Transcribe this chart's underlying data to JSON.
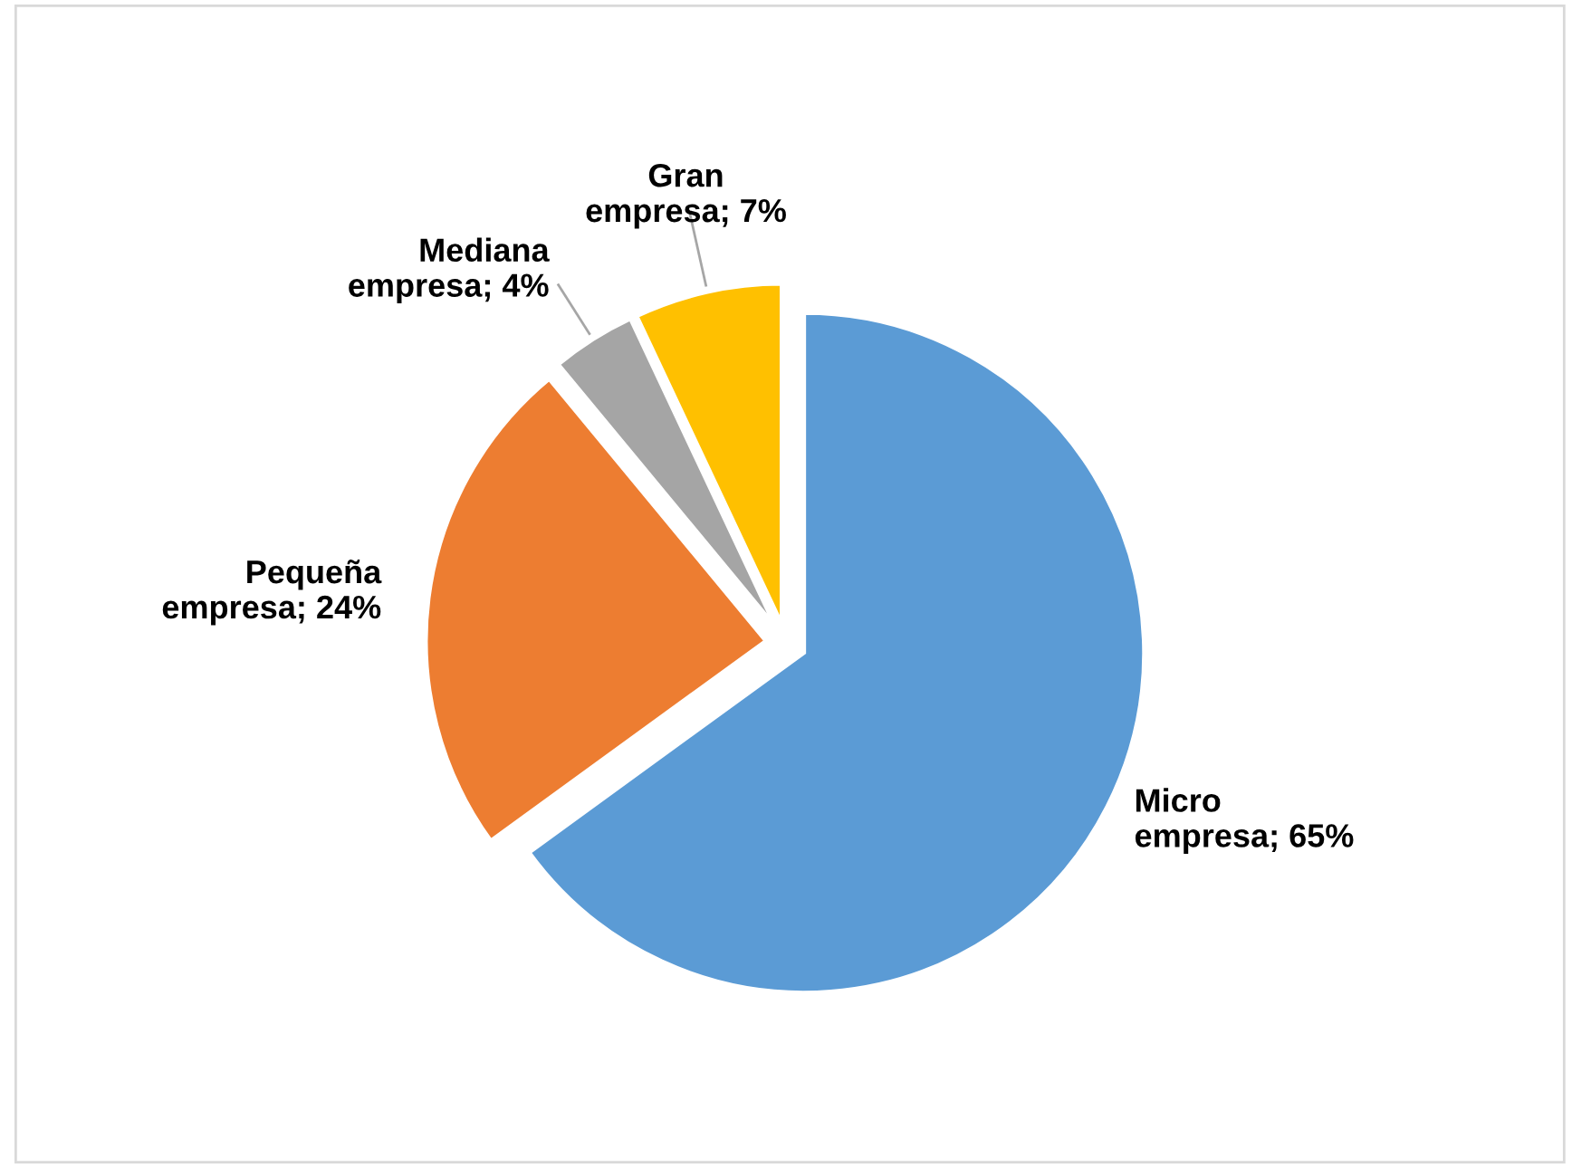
{
  "chart_data": {
    "type": "pie",
    "categories": [
      "Micro empresa",
      "Pequeña empresa",
      "Mediana empresa",
      "Gran empresa"
    ],
    "values": [
      65,
      24,
      4,
      7
    ],
    "colors": [
      "#5b9bd5",
      "#ed7d31",
      "#a5a5a5",
      "#ffc000"
    ],
    "value_labels": [
      "65%",
      "24%",
      "4%",
      "7%"
    ],
    "legend": false
  }
}
